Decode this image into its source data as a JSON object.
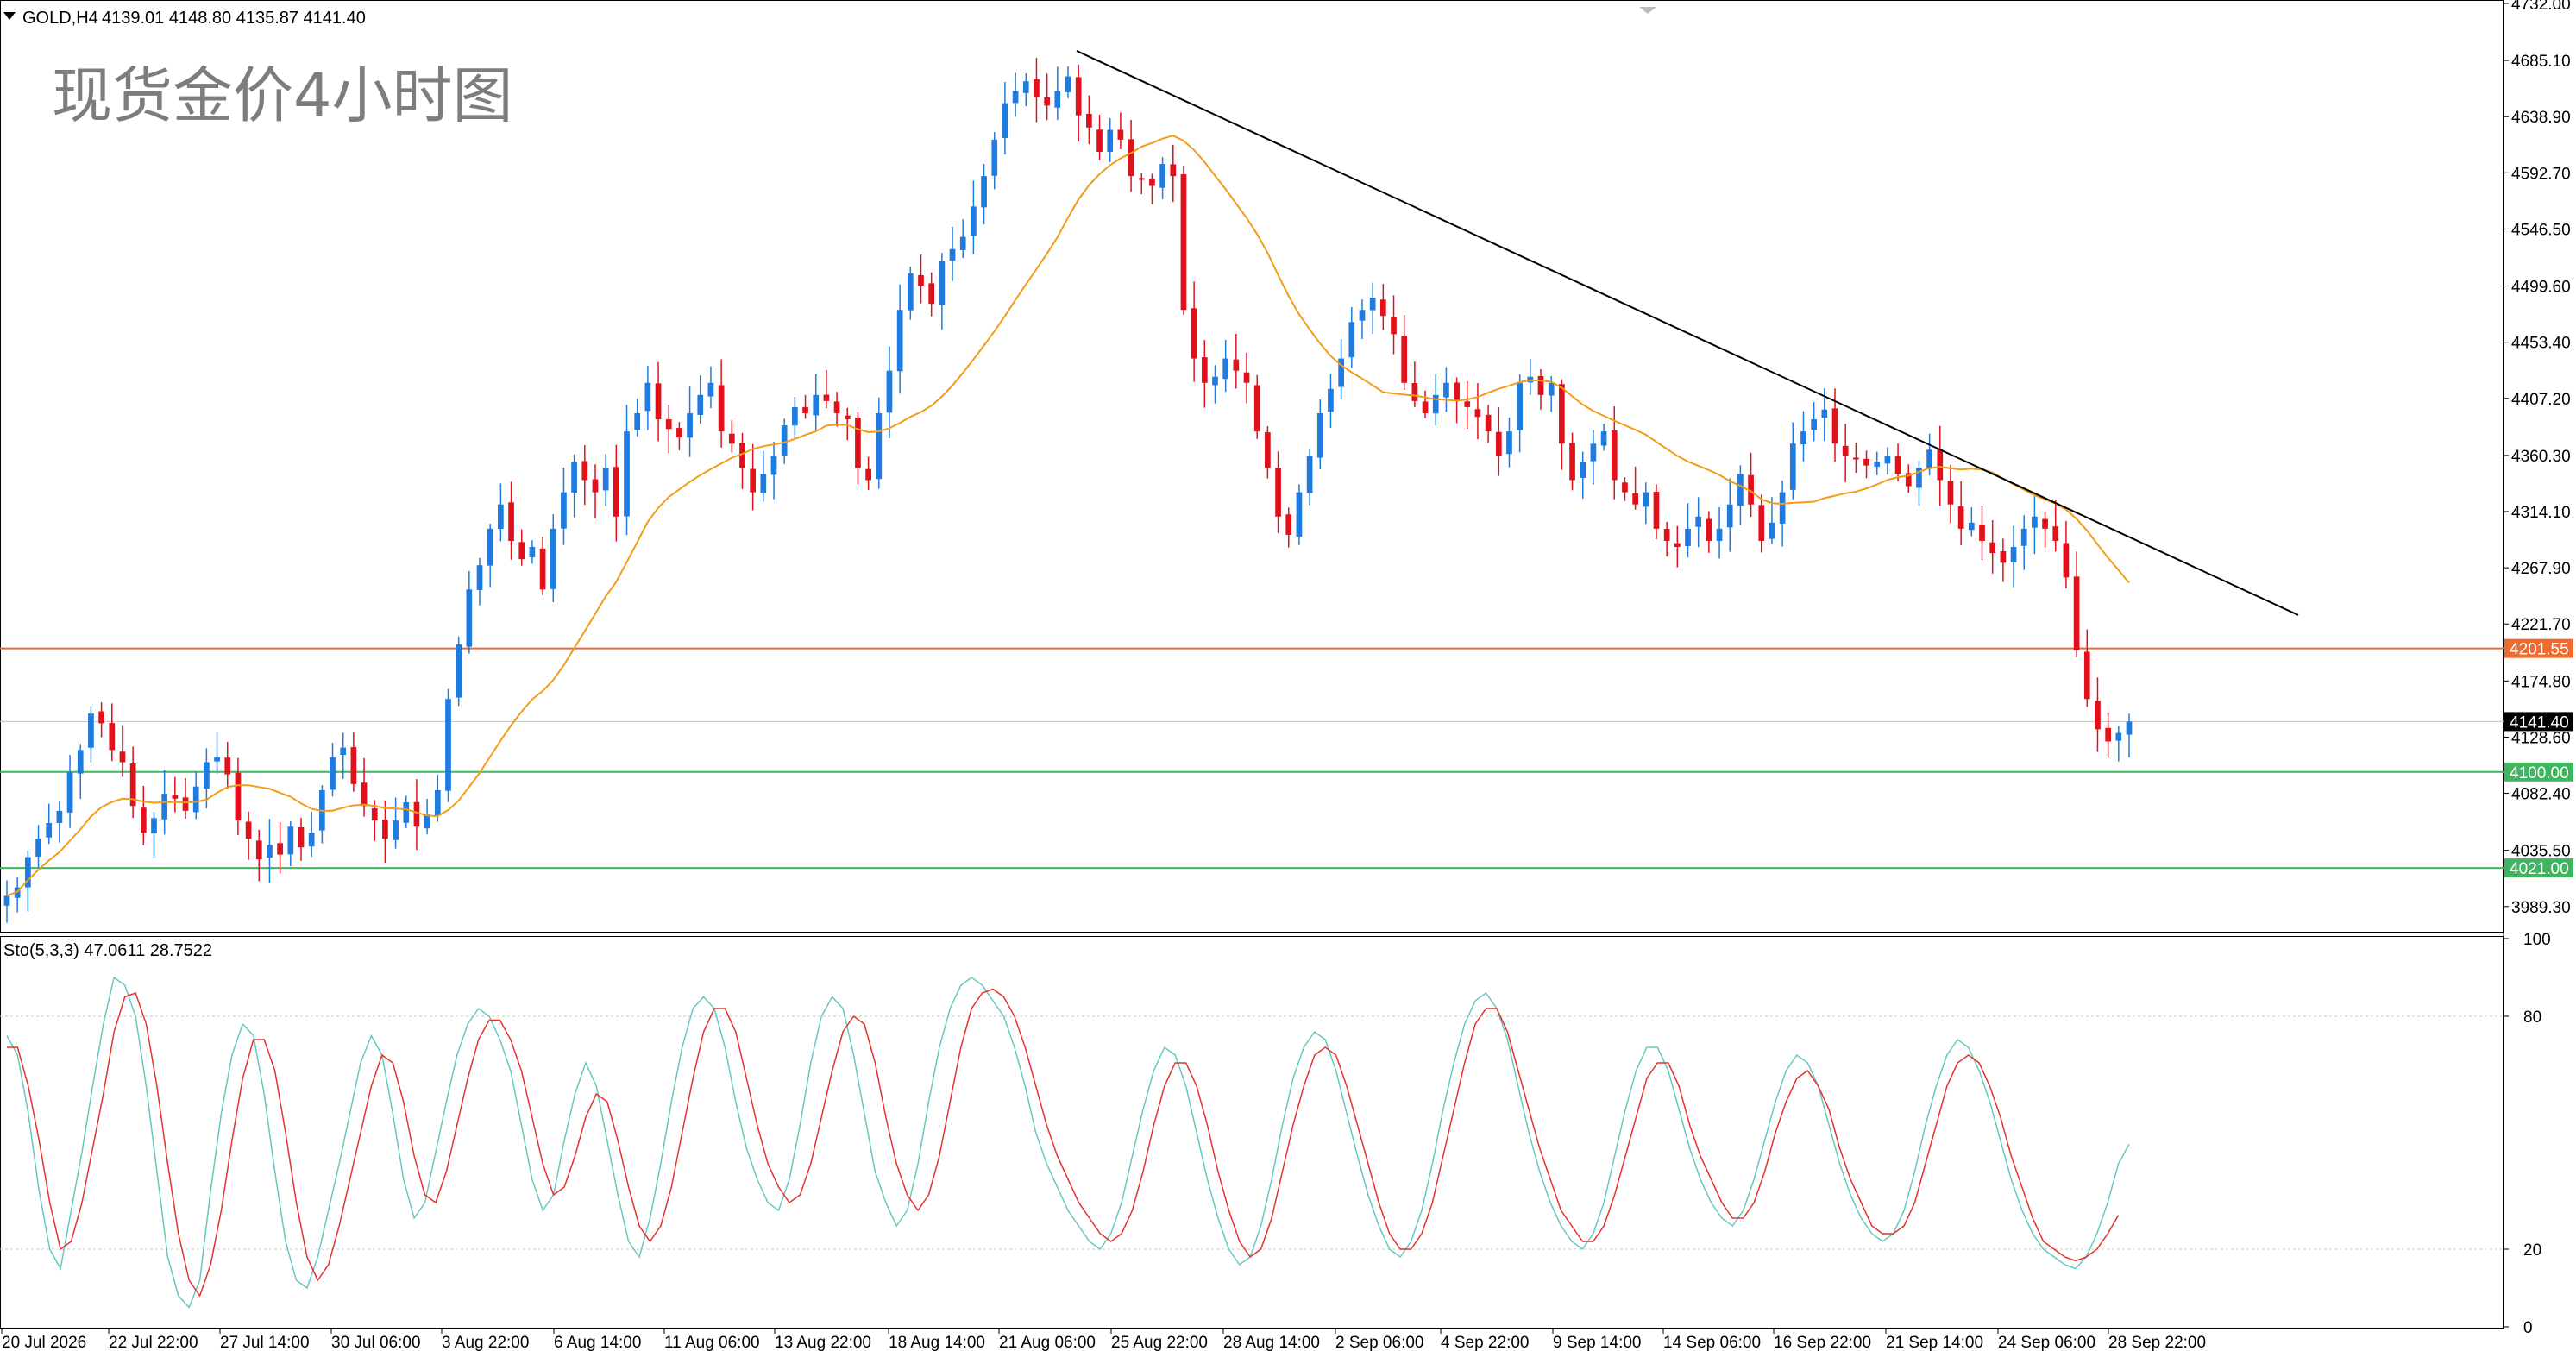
{
  "header": {
    "symbol_label": "GOLD,H4",
    "ohlc_label": "4139.01 4148.80 4135.87 4141.40"
  },
  "overlay_title": "现货金价4小时图",
  "indicator_label": "Sto(5,3,3) 47.0611 28.7522",
  "colors": {
    "bull": "#1e7be0",
    "bear": "#e0111b",
    "ma": "#f39c1a",
    "trendline": "#000000",
    "resistance": "#f0692d",
    "support": "#3fb461",
    "stoch_main": "#67c8c0",
    "stoch_signal": "#e1342e",
    "current_price_tag": "#000000"
  },
  "chart_data": [
    {
      "type": "candlestick",
      "title": "",
      "symbol": "GOLD",
      "timeframe": "H4",
      "ylim": [
        3970,
        4732
      ],
      "y_ticks": [
        "4732.00",
        "4685.10",
        "4638.90",
        "4592.70",
        "4546.50",
        "4499.60",
        "4453.40",
        "4407.20",
        "4360.30",
        "4314.10",
        "4267.90",
        "4221.70",
        "4174.80",
        "4128.60",
        "4082.40",
        "4035.50",
        "3989.30"
      ],
      "x_ticks": [
        "20 Jul 2026",
        "22 Jul 22:00",
        "27 Jul 14:00",
        "30 Jul 06:00",
        "3 Aug 22:00",
        "6 Aug 14:00",
        "11 Aug 06:00",
        "13 Aug 22:00",
        "18 Aug 14:00",
        "21 Aug 06:00",
        "25 Aug 22:00",
        "28 Aug 14:00",
        "2 Sep 06:00",
        "4 Sep 22:00",
        "9 Sep 14:00",
        "14 Sep 06:00",
        "16 Sep 22:00",
        "21 Sep 14:00",
        "24 Sep 06:00",
        "28 Sep 22:00"
      ],
      "close_series": [
        3998,
        4005,
        4030,
        4045,
        4058,
        4068,
        4100,
        4118,
        4148,
        4140,
        4118,
        4108,
        4072,
        4050,
        4062,
        4082,
        4078,
        4068,
        4088,
        4108,
        4112,
        4098,
        4060,
        4045,
        4028,
        4040,
        4032,
        4055,
        4038,
        4050,
        4085,
        4112,
        4120,
        4090,
        4072,
        4060,
        4045,
        4060,
        4075,
        4055,
        4065,
        4085,
        4160,
        4205,
        4250,
        4270,
        4300,
        4320,
        4290,
        4275,
        4285,
        4250,
        4300,
        4330,
        4355,
        4340,
        4330,
        4350,
        4310,
        4380,
        4395,
        4420,
        4390,
        4382,
        4375,
        4395,
        4410,
        4420,
        4380,
        4370,
        4350,
        4330,
        4345,
        4360,
        4385,
        4400,
        4395,
        4410,
        4405,
        4395,
        4390,
        4350,
        4340,
        4395,
        4430,
        4480,
        4510,
        4500,
        4485,
        4520,
        4530,
        4540,
        4565,
        4590,
        4620,
        4650,
        4660,
        4668,
        4655,
        4648,
        4660,
        4672,
        4640,
        4630,
        4610,
        4628,
        4620,
        4590,
        4588,
        4582,
        4600,
        4590,
        4480,
        4440,
        4420,
        4425,
        4440,
        4430,
        4420,
        4380,
        4350,
        4310,
        4295,
        4330,
        4360,
        4395,
        4415,
        4440,
        4470,
        4480,
        4490,
        4475,
        4460,
        4420,
        4405,
        4395,
        4410,
        4420,
        4405,
        4400,
        4392,
        4380,
        4360,
        4380,
        4420,
        4425,
        4410,
        4420,
        4370,
        4340,
        4355,
        4370,
        4380,
        4340,
        4330,
        4320,
        4330,
        4300,
        4290,
        4285,
        4300,
        4310,
        4290,
        4300,
        4320,
        4345,
        4320,
        4290,
        4305,
        4330,
        4370,
        4380,
        4390,
        4398,
        4370,
        4360,
        4358,
        4352,
        4355,
        4360,
        4345,
        4335,
        4350,
        4365,
        4340,
        4320,
        4300,
        4305,
        4290,
        4280,
        4272,
        4285,
        4300,
        4310,
        4300,
        4290,
        4260,
        4200,
        4160,
        4135,
        4125,
        4132,
        4141.4
      ],
      "series": [
        {
          "name": "",
          "kind": "moving_average"
        },
        {
          "name": "",
          "kind": "trendline",
          "from": {
            "x": "21 Aug 06:00",
            "y": 4693
          },
          "to": {
            "x": "30 Sep",
            "y": 4229
          }
        }
      ],
      "horizontal_levels": [
        {
          "label": "4201.55",
          "value": 4201.55,
          "color": "#f0692d"
        },
        {
          "label": "4100.00",
          "value": 4100.0,
          "color": "#3fb461"
        },
        {
          "label": "4021.00",
          "value": 4021.0,
          "color": "#3fb461"
        }
      ],
      "current_price": {
        "label": "4141.40",
        "value": 4141.4
      },
      "grid": false
    },
    {
      "type": "line",
      "title": "",
      "indicator": "Stochastic",
      "ylim": [
        0,
        100
      ],
      "y_ticks": [
        "100",
        "80",
        "20",
        "0"
      ],
      "levels": [
        80,
        20
      ],
      "series": [
        {
          "name": "",
          "values": [
            75,
            70,
            55,
            35,
            20,
            15,
            30,
            45,
            62,
            78,
            90,
            88,
            80,
            62,
            40,
            18,
            8,
            5,
            12,
            35,
            55,
            70,
            78,
            75,
            60,
            40,
            22,
            12,
            10,
            18,
            30,
            42,
            55,
            68,
            75,
            70,
            55,
            38,
            28,
            32,
            45,
            58,
            70,
            78,
            82,
            80,
            74,
            66,
            52,
            38,
            30,
            34,
            48,
            60,
            68,
            62,
            48,
            34,
            22,
            18,
            28,
            42,
            58,
            72,
            82,
            85,
            82,
            72,
            58,
            46,
            38,
            32,
            30,
            38,
            52,
            68,
            80,
            85,
            82,
            70,
            55,
            40,
            32,
            26,
            30,
            42,
            58,
            72,
            82,
            88,
            90,
            88,
            84,
            80,
            72,
            62,
            50,
            42,
            36,
            30,
            26,
            22,
            20,
            24,
            32,
            44,
            56,
            66,
            72,
            70,
            62,
            50,
            38,
            28,
            20,
            16,
            18,
            26,
            38,
            52,
            64,
            72,
            76,
            74,
            66,
            55,
            44,
            34,
            26,
            20,
            18,
            22,
            30,
            42,
            56,
            68,
            78,
            84,
            86,
            82,
            74,
            62,
            50,
            40,
            32,
            26,
            22,
            20,
            24,
            32,
            44,
            56,
            66,
            72,
            72,
            66,
            56,
            46,
            38,
            32,
            28,
            26,
            30,
            38,
            48,
            58,
            66,
            70,
            68,
            62,
            52,
            42,
            34,
            28,
            24,
            22,
            24,
            30,
            40,
            52,
            62,
            70,
            74,
            72,
            66,
            58,
            48,
            38,
            30,
            24,
            20,
            18,
            16,
            15,
            18,
            24,
            32,
            42,
            47.0611
          ]
        },
        {
          "name": "",
          "values": [
            72,
            72,
            62,
            48,
            32,
            20,
            22,
            32,
            46,
            60,
            76,
            85,
            86,
            78,
            62,
            42,
            24,
            12,
            8,
            16,
            30,
            48,
            64,
            74,
            74,
            66,
            50,
            32,
            18,
            12,
            16,
            26,
            38,
            50,
            62,
            70,
            68,
            58,
            44,
            34,
            32,
            40,
            52,
            64,
            74,
            79,
            79,
            74,
            66,
            54,
            42,
            34,
            36,
            44,
            54,
            60,
            58,
            48,
            36,
            26,
            22,
            26,
            36,
            50,
            64,
            76,
            82,
            82,
            76,
            64,
            52,
            42,
            36,
            32,
            34,
            42,
            54,
            66,
            76,
            80,
            78,
            68,
            54,
            42,
            34,
            30,
            34,
            44,
            58,
            72,
            82,
            86,
            87,
            85,
            80,
            72,
            62,
            52,
            44,
            38,
            32,
            28,
            24,
            22,
            24,
            30,
            40,
            52,
            62,
            68,
            68,
            62,
            52,
            40,
            30,
            22,
            18,
            20,
            28,
            40,
            52,
            62,
            70,
            72,
            70,
            62,
            52,
            42,
            32,
            24,
            20,
            20,
            24,
            32,
            44,
            56,
            68,
            78,
            82,
            82,
            76,
            66,
            56,
            46,
            38,
            30,
            26,
            22,
            22,
            26,
            34,
            44,
            54,
            64,
            68,
            68,
            62,
            52,
            44,
            38,
            32,
            28,
            28,
            32,
            40,
            50,
            58,
            64,
            66,
            62,
            56,
            46,
            38,
            32,
            26,
            24,
            24,
            26,
            32,
            42,
            52,
            62,
            68,
            70,
            68,
            62,
            54,
            44,
            36,
            28,
            22,
            20,
            18,
            17,
            18,
            20,
            24,
            28.7522
          ]
        }
      ]
    }
  ]
}
